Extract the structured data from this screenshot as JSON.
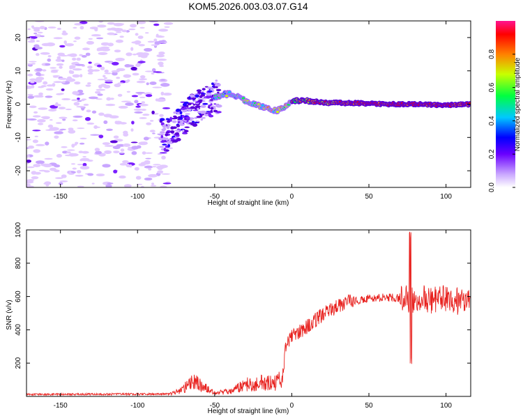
{
  "title": "KOM5.2026.003.03.07.G14",
  "chart_data": [
    {
      "type": "heatmap",
      "name": "spectrogram",
      "xlabel": "Height of straight line (km)",
      "ylabel": "Frequency (Hz)",
      "xlim": [
        -172,
        116
      ],
      "ylim": [
        -25,
        25
      ],
      "xticks": [
        -150,
        -100,
        -50,
        0,
        50,
        100
      ],
      "yticks": [
        -20,
        -10,
        0,
        10,
        20
      ],
      "track_points": [
        {
          "x": -80,
          "y": -9
        },
        {
          "x": -72,
          "y": -5
        },
        {
          "x": -65,
          "y": -2
        },
        {
          "x": -58,
          "y": 0
        },
        {
          "x": -50,
          "y": 2
        },
        {
          "x": -45,
          "y": 3
        },
        {
          "x": -38,
          "y": 3
        },
        {
          "x": -30,
          "y": 1
        },
        {
          "x": -24,
          "y": 0
        },
        {
          "x": -18,
          "y": -1
        },
        {
          "x": -10,
          "y": -2
        },
        {
          "x": -5,
          "y": -1
        },
        {
          "x": 0,
          "y": 1
        },
        {
          "x": 10,
          "y": 1
        },
        {
          "x": 20,
          "y": 0.5
        },
        {
          "x": 40,
          "y": 0.3
        },
        {
          "x": 60,
          "y": 0
        },
        {
          "x": 80,
          "y": 0
        },
        {
          "x": 100,
          "y": -0.3
        },
        {
          "x": 116,
          "y": 0
        }
      ],
      "noise_region_x": [
        -172,
        -80
      ]
    },
    {
      "type": "colorbar",
      "label": "Normalized spectral amplitude",
      "range": [
        0,
        1
      ],
      "ticks": [
        "0.0",
        "0.2",
        "0.4",
        "0.6",
        "0.8"
      ]
    },
    {
      "type": "line",
      "name": "snr",
      "xlabel": "Height of straight line (km)",
      "ylabel": "SNR (v/v)",
      "xlim": [
        -172,
        116
      ],
      "ylim": [
        0,
        1000
      ],
      "xticks": [
        -150,
        -100,
        -50,
        0,
        50,
        100
      ],
      "yticks": [
        200,
        400,
        600,
        800,
        1000
      ],
      "color": "#e8221f",
      "envelope": [
        {
          "x": -172,
          "y": 12
        },
        {
          "x": -80,
          "y": 14
        },
        {
          "x": -72,
          "y": 35
        },
        {
          "x": -64,
          "y": 90
        },
        {
          "x": -58,
          "y": 60
        },
        {
          "x": -50,
          "y": 20
        },
        {
          "x": -40,
          "y": 30
        },
        {
          "x": -30,
          "y": 70
        },
        {
          "x": -20,
          "y": 80
        },
        {
          "x": -10,
          "y": 80
        },
        {
          "x": -6,
          "y": 110
        },
        {
          "x": -4,
          "y": 300
        },
        {
          "x": 0,
          "y": 360
        },
        {
          "x": 10,
          "y": 420
        },
        {
          "x": 20,
          "y": 490
        },
        {
          "x": 30,
          "y": 545
        },
        {
          "x": 40,
          "y": 575
        },
        {
          "x": 50,
          "y": 585
        },
        {
          "x": 60,
          "y": 595
        },
        {
          "x": 70,
          "y": 590
        },
        {
          "x": 80,
          "y": 585
        },
        {
          "x": 90,
          "y": 580
        },
        {
          "x": 100,
          "y": 580
        },
        {
          "x": 116,
          "y": 585
        }
      ],
      "spike": {
        "x": 77,
        "max": 1000,
        "min": 195
      }
    }
  ]
}
